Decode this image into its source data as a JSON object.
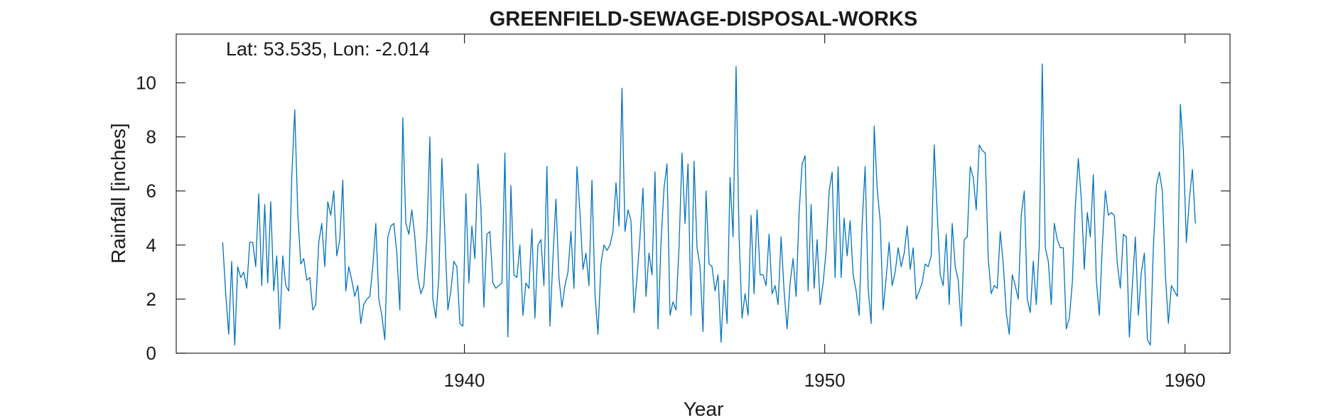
{
  "chart_data": {
    "type": "line",
    "title": "GREENFIELD-SEWAGE-DISPOSAL-WORKS",
    "annotation": "Lat: 53.535, Lon: -2.014",
    "xlabel": "Year",
    "ylabel": "Rainfall [inches]",
    "xlim": [
      1932,
      1961.25
    ],
    "ylim": [
      0,
      11.8
    ],
    "xticks": [
      1940,
      1950,
      1960
    ],
    "yticks": [
      0,
      2,
      4,
      6,
      8,
      10
    ],
    "grid": false,
    "series_color": "#0072bd",
    "series": [
      {
        "x_start": 1933.29,
        "x_step": 0.08333,
        "values": [
          4.1,
          2.2,
          0.7,
          3.4,
          0.3,
          3.2,
          2.8,
          3.0,
          2.4,
          4.1,
          4.1,
          3.2,
          5.9,
          2.5,
          5.5,
          2.6,
          5.6,
          2.3,
          3.6,
          0.9,
          3.6,
          2.5,
          2.3,
          6.5,
          9.0,
          5.2,
          3.3,
          3.5,
          2.7,
          2.8,
          1.6,
          1.8,
          4.1,
          4.8,
          3.2,
          5.6,
          5.1,
          6.0,
          3.6,
          4.2,
          6.4,
          2.3,
          3.2,
          2.7,
          2.1,
          2.5,
          1.1,
          1.8,
          2.0,
          2.1,
          3.2,
          4.8,
          2.0,
          1.4,
          0.5,
          4.3,
          4.7,
          4.8,
          3.7,
          1.6,
          8.7,
          4.8,
          4.4,
          5.3,
          4.3,
          2.8,
          2.2,
          2.5,
          4.3,
          8.0,
          2.0,
          1.3,
          2.8,
          7.2,
          4.4,
          1.6,
          2.3,
          3.4,
          3.2,
          1.1,
          1.0,
          5.9,
          2.6,
          4.7,
          3.5,
          7.0,
          5.4,
          1.7,
          4.4,
          4.5,
          2.6,
          2.4,
          2.5,
          2.6,
          7.4,
          0.6,
          6.2,
          2.9,
          2.8,
          4.0,
          1.4,
          2.6,
          2.4,
          4.6,
          1.3,
          4.0,
          4.2,
          2.5,
          6.9,
          1.0,
          3.5,
          5.7,
          2.8,
          1.7,
          2.5,
          3.0,
          4.5,
          2.4,
          6.9,
          5.2,
          3.1,
          3.7,
          2.5,
          6.4,
          2.2,
          0.7,
          3.3,
          4.0,
          3.8,
          4.0,
          4.5,
          6.3,
          4.7,
          9.8,
          4.5,
          5.3,
          4.9,
          1.5,
          2.8,
          4.3,
          6.1,
          2.1,
          3.7,
          2.9,
          6.7,
          0.9,
          4.1,
          6.1,
          7.0,
          1.4,
          1.9,
          1.6,
          3.9,
          7.4,
          4.8,
          7.0,
          1.4,
          7.1,
          3.9,
          3.2,
          0.8,
          6.0,
          3.3,
          3.2,
          2.3,
          2.9,
          0.4,
          2.7,
          1.1,
          6.5,
          4.3,
          10.6,
          4.3,
          1.3,
          2.2,
          1.4,
          5.1,
          2.2,
          5.3,
          2.9,
          2.9,
          2.5,
          4.4,
          2.2,
          2.5,
          1.8,
          4.3,
          2.3,
          0.9,
          2.6,
          3.5,
          2.1,
          5.2,
          7.0,
          7.3,
          2.3,
          5.5,
          2.4,
          4.2,
          1.8,
          2.6,
          3.8,
          6.0,
          6.7,
          2.8,
          6.9,
          2.8,
          5.0,
          3.6,
          4.9,
          2.9,
          2.3,
          1.4,
          4.8,
          6.9,
          2.4,
          1.1,
          8.4,
          6.1,
          4.9,
          1.6,
          2.8,
          4.1,
          2.5,
          3.0,
          3.9,
          3.2,
          3.7,
          4.7,
          3.1,
          3.9,
          2.0,
          2.3,
          2.6,
          3.3,
          3.2,
          3.6,
          7.7,
          5.2,
          2.9,
          2.5,
          4.4,
          1.8,
          4.8,
          3.2,
          2.7,
          1.0,
          4.2,
          4.3,
          6.9,
          6.5,
          5.3,
          7.7,
          7.5,
          7.4,
          3.5,
          2.2,
          2.5,
          2.4,
          4.5,
          3.3,
          1.5,
          0.7,
          2.9,
          2.5,
          2.0,
          5.1,
          6.0,
          2.0,
          1.5,
          3.4,
          1.8,
          4.0,
          10.7,
          3.9,
          3.4,
          1.8,
          4.8,
          4.2,
          3.9,
          3.9,
          0.9,
          1.3,
          2.6,
          5.4,
          7.2,
          5.7,
          3.1,
          5.2,
          4.3,
          6.6,
          2.7,
          1.4,
          4.0,
          6.0,
          5.1,
          5.2,
          5.1,
          3.3,
          2.4,
          4.4,
          4.3,
          0.6,
          2.5,
          4.3,
          1.4,
          3.0,
          3.7,
          0.5,
          0.3,
          3.9,
          6.2,
          6.7,
          6.0,
          2.9,
          1.1,
          2.5,
          2.3,
          2.1,
          9.2,
          7.5,
          4.1,
          5.7,
          6.8,
          4.8
        ]
      }
    ]
  }
}
